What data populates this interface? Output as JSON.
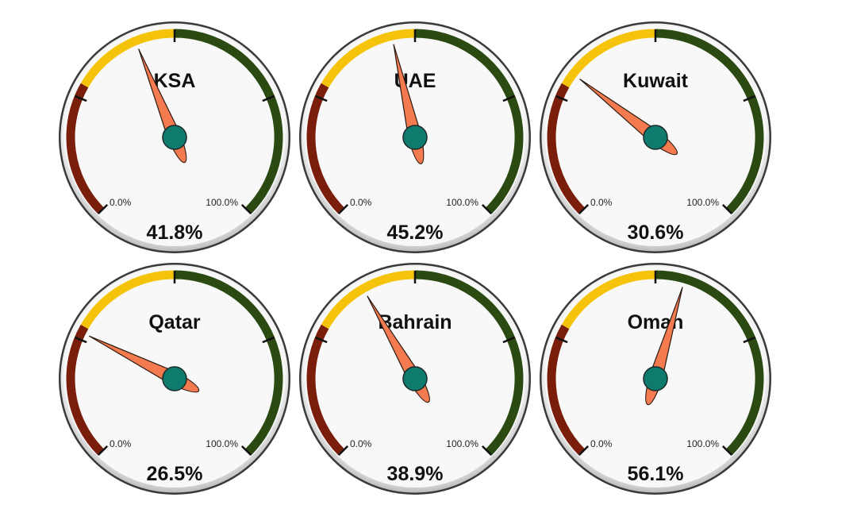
{
  "chart_data": {
    "type": "gauge",
    "min_label": "0.0%",
    "max_label": "100.0%",
    "range": [
      0,
      100
    ],
    "band_colors": {
      "low": "#7a1e0b",
      "mid": "#f5c40a",
      "high": "#2b4a12"
    },
    "needle_color": "#f47a50",
    "hub_color": "#0f7a6e",
    "gauges": [
      {
        "name": "KSA",
        "value": 41.8,
        "value_label": "41.8%"
      },
      {
        "name": "UAE",
        "value": 45.2,
        "value_label": "45.2%"
      },
      {
        "name": "Kuwait",
        "value": 30.6,
        "value_label": "30.6%"
      },
      {
        "name": "Qatar",
        "value": 26.5,
        "value_label": "26.5%"
      },
      {
        "name": "Bahrain",
        "value": 38.9,
        "value_label": "38.9%"
      },
      {
        "name": "Oman",
        "value": 56.1,
        "value_label": "56.1%"
      }
    ]
  }
}
